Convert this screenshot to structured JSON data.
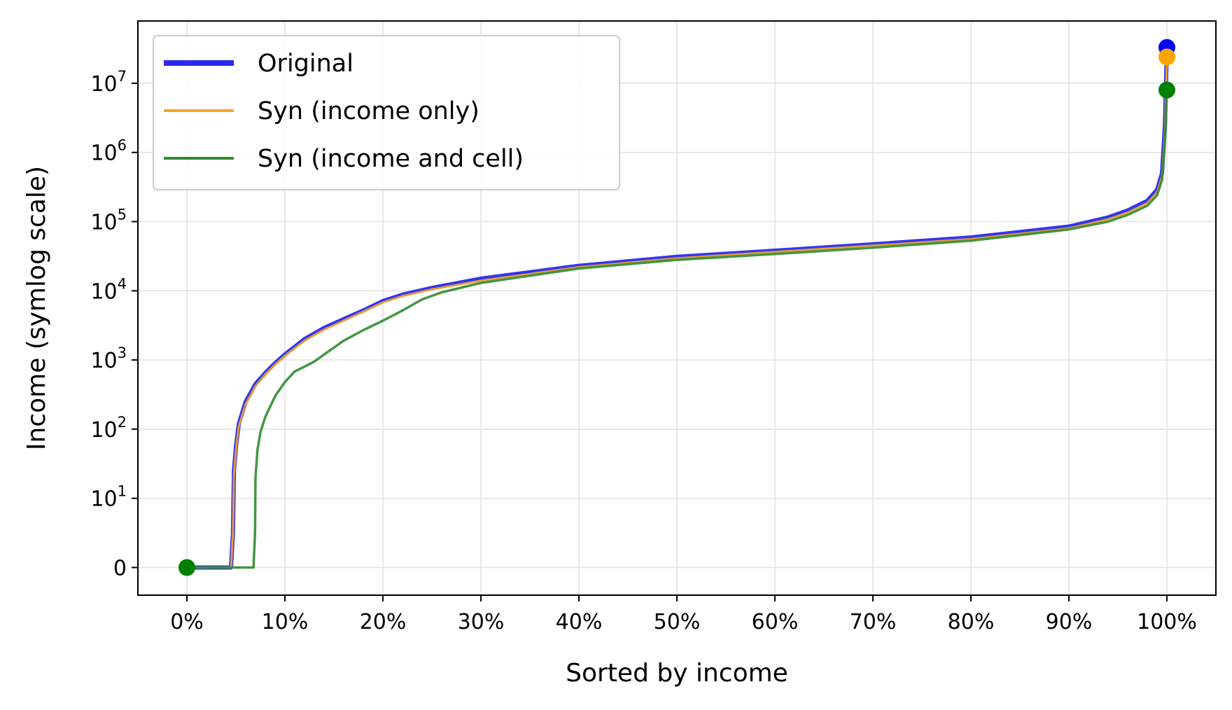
{
  "chart_data": {
    "type": "line",
    "title": "",
    "xlabel": "Sorted by income",
    "ylabel": "Income (symlog scale)",
    "x_scale": "linear",
    "y_scale": "symlog",
    "xlim": [
      -5,
      105
    ],
    "ylim": [
      -0.4,
      7.9
    ],
    "grid": true,
    "legend_position": "top-left",
    "x_ticks": [
      0,
      10,
      20,
      30,
      40,
      50,
      60,
      70,
      80,
      90,
      100
    ],
    "x_tick_labels": [
      "0%",
      "10%",
      "20%",
      "30%",
      "40%",
      "50%",
      "60%",
      "70%",
      "80%",
      "90%",
      "100%"
    ],
    "y_ticks": [
      0,
      10,
      100,
      1000,
      10000,
      100000,
      1000000,
      10000000
    ],
    "y_tick_labels": [
      {
        "base": "0",
        "exp": ""
      },
      {
        "base": "10",
        "exp": "1"
      },
      {
        "base": "10",
        "exp": "2"
      },
      {
        "base": "10",
        "exp": "3"
      },
      {
        "base": "10",
        "exp": "4"
      },
      {
        "base": "10",
        "exp": "5"
      },
      {
        "base": "10",
        "exp": "6"
      },
      {
        "base": "10",
        "exp": "7"
      }
    ],
    "series": [
      {
        "name": "Original",
        "color": "#2a2aee",
        "width": 6,
        "x": [
          0,
          4.5,
          4.7,
          4.8,
          5,
          5.3,
          6,
          7,
          8,
          9,
          10,
          12,
          14,
          16,
          18,
          20,
          22,
          25,
          30,
          40,
          50,
          60,
          70,
          80,
          90,
          94,
          96,
          98,
          99,
          99.5,
          99.8,
          100
        ],
        "y": [
          0,
          0,
          5,
          25,
          55,
          120,
          250,
          450,
          650,
          900,
          1200,
          2000,
          2900,
          3900,
          5200,
          7100,
          8800,
          11000,
          15000,
          23000,
          31000,
          38000,
          47000,
          59000,
          85000,
          115000,
          145000,
          200000,
          290000,
          500000,
          2500000,
          33000000
        ],
        "end_marker": {
          "x": 0,
          "y": 0
        }
      },
      {
        "name": "Syn (income only)",
        "color": "#f5a623",
        "width": 3,
        "x": [
          0,
          4.5,
          4.7,
          4.8,
          5,
          5.3,
          6,
          7,
          8,
          9,
          10,
          12,
          14,
          16,
          18,
          20,
          22,
          25,
          30,
          40,
          50,
          60,
          70,
          80,
          90,
          94,
          96,
          98,
          99,
          99.5,
          99.8,
          100
        ],
        "y": [
          0,
          0,
          5,
          22,
          50,
          110,
          230,
          420,
          620,
          860,
          1150,
          1900,
          2750,
          3700,
          5000,
          6800,
          8400,
          10500,
          14000,
          22000,
          29500,
          36500,
          45000,
          56000,
          80000,
          108000,
          135000,
          185000,
          265000,
          450000,
          2000000,
          24000000
        ]
      },
      {
        "name": "Syn (income and cell)",
        "color": "#2e8b2e",
        "width": 3.5,
        "x": [
          0,
          6.8,
          6.95,
          7,
          7.2,
          7.5,
          8,
          9,
          10,
          11,
          12,
          13,
          14,
          16,
          18,
          20,
          22,
          24,
          26,
          30,
          40,
          50,
          60,
          70,
          80,
          90,
          94,
          96,
          98,
          99,
          99.5,
          99.8,
          100
        ],
        "y": [
          0,
          0,
          5,
          20,
          50,
          90,
          150,
          300,
          480,
          680,
          800,
          950,
          1200,
          1900,
          2700,
          3700,
          5200,
          7500,
          9500,
          13000,
          21000,
          28000,
          34000,
          42000,
          53000,
          77000,
          100000,
          125000,
          170000,
          240000,
          400000,
          1500000,
          8000000
        ]
      }
    ],
    "endpoint_markers": [
      {
        "series": "Original",
        "x": 100,
        "y": 33000000,
        "color": "#0000ff"
      },
      {
        "series": "Syn (income only)",
        "x": 100,
        "y": 24000000,
        "color": "#ffa500"
      },
      {
        "series": "Syn (income and cell)",
        "x": 100,
        "y": 8000000,
        "color": "#008000"
      },
      {
        "series": "Syn (income and cell)",
        "x": 0,
        "y": 0,
        "color": "#008000"
      }
    ]
  }
}
